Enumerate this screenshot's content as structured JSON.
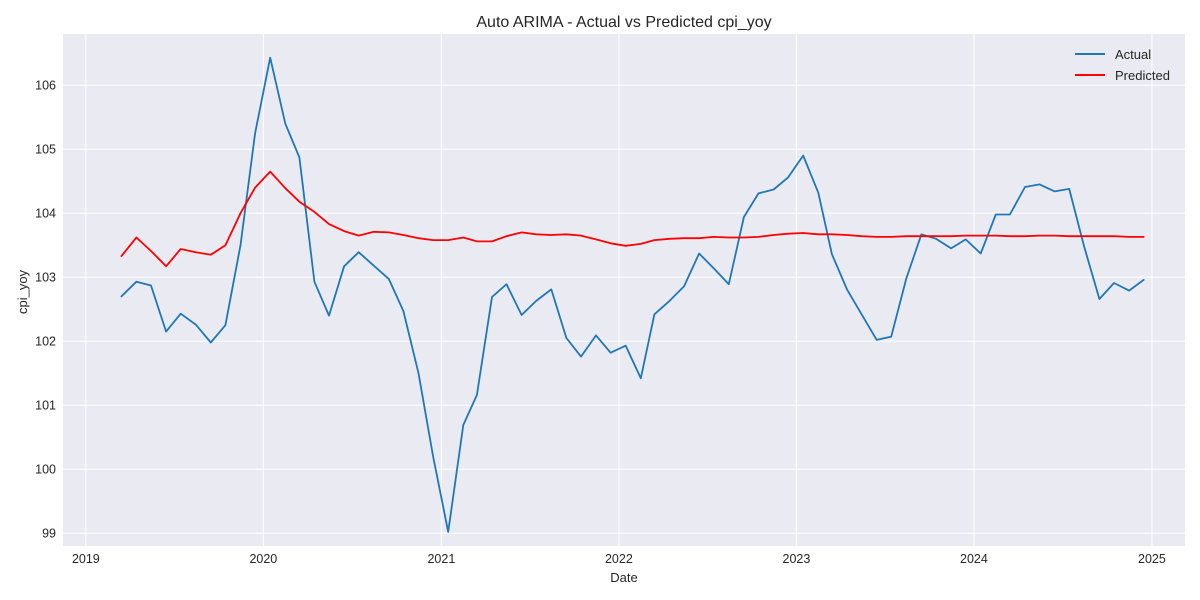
{
  "chart_data": {
    "type": "line",
    "title": "Auto ARIMA - Actual vs Predicted cpi_yoy",
    "xlabel": "Date",
    "ylabel": "cpi_yoy",
    "xlim": [
      "2018-11-15",
      "2025-03-10"
    ],
    "ylim": [
      98.8,
      106.8
    ],
    "x_ticks": [
      "2019",
      "2020",
      "2021",
      "2022",
      "2023",
      "2024",
      "2025"
    ],
    "y_ticks": [
      99,
      100,
      101,
      102,
      103,
      104,
      105,
      106
    ],
    "grid": true,
    "legend_position": "top-right",
    "x": [
      "2019-03",
      "2019-04",
      "2019-05",
      "2019-06",
      "2019-07",
      "2019-08",
      "2019-09",
      "2019-10",
      "2019-11",
      "2019-12",
      "2020-01",
      "2020-02",
      "2020-03",
      "2020-04",
      "2020-05",
      "2020-06",
      "2020-07",
      "2020-08",
      "2020-09",
      "2020-10",
      "2020-11",
      "2020-12",
      "2021-01",
      "2021-02",
      "2021-03",
      "2021-04",
      "2021-05",
      "2021-06",
      "2021-07",
      "2021-08",
      "2021-09",
      "2021-10",
      "2021-11",
      "2021-12",
      "2022-01",
      "2022-02",
      "2022-03",
      "2022-04",
      "2022-05",
      "2022-06",
      "2022-07",
      "2022-08",
      "2022-09",
      "2022-10",
      "2022-11",
      "2022-12",
      "2023-01",
      "2023-02",
      "2023-03",
      "2023-04",
      "2023-05",
      "2023-06",
      "2023-07",
      "2023-08",
      "2023-09",
      "2023-10",
      "2023-11",
      "2023-12",
      "2024-01",
      "2024-02",
      "2024-03",
      "2024-04",
      "2024-05",
      "2024-06",
      "2024-07",
      "2024-08",
      "2024-09",
      "2024-10",
      "2024-11",
      "2024-12"
    ],
    "series": [
      {
        "name": "Actual",
        "color": "#1f77b4",
        "values": [
          102.7,
          102.93,
          102.87,
          102.15,
          102.43,
          102.26,
          101.98,
          102.25,
          103.5,
          105.25,
          106.43,
          105.4,
          104.87,
          102.93,
          102.4,
          103.17,
          103.39,
          103.18,
          102.97,
          102.47,
          101.5,
          100.2,
          99.02,
          100.69,
          101.16,
          102.69,
          102.89,
          102.41,
          102.63,
          102.81,
          102.05,
          101.76,
          102.09,
          101.82,
          101.93,
          101.42,
          102.42,
          102.63,
          102.86,
          103.37,
          103.14,
          102.89,
          103.94,
          104.31,
          104.37,
          104.56,
          104.9,
          104.32,
          103.36,
          102.81,
          102.42,
          102.02,
          102.07,
          102.98,
          103.67,
          103.6,
          103.45,
          103.59,
          103.37,
          103.98,
          103.98,
          104.41,
          104.45,
          104.34,
          104.38,
          103.47,
          102.66,
          102.91,
          102.79,
          102.96
        ]
      },
      {
        "name": "Predicted",
        "color": "#ff0000",
        "values": [
          103.33,
          103.62,
          103.41,
          103.17,
          103.44,
          103.39,
          103.35,
          103.5,
          104.0,
          104.4,
          104.65,
          104.39,
          104.18,
          104.02,
          103.83,
          103.72,
          103.65,
          103.71,
          103.7,
          103.66,
          103.61,
          103.58,
          103.58,
          103.62,
          103.56,
          103.56,
          103.64,
          103.7,
          103.67,
          103.66,
          103.67,
          103.65,
          103.59,
          103.53,
          103.49,
          103.52,
          103.58,
          103.6,
          103.61,
          103.61,
          103.63,
          103.62,
          103.62,
          103.63,
          103.66,
          103.68,
          103.69,
          103.67,
          103.67,
          103.66,
          103.64,
          103.63,
          103.63,
          103.64,
          103.64,
          103.64,
          103.64,
          103.65,
          103.65,
          103.65,
          103.64,
          103.64,
          103.65,
          103.65,
          103.64,
          103.64,
          103.64,
          103.64,
          103.63,
          103.63
        ]
      }
    ]
  }
}
